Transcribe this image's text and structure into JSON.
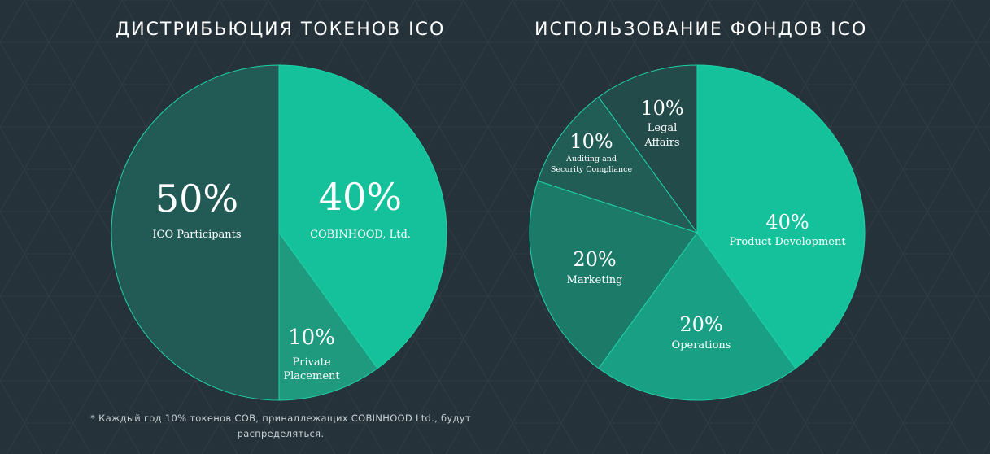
{
  "chart_data": [
    {
      "type": "pie",
      "title": "ДИСТРИБЬЮЦИЯ ТОКЕНОВ ICO",
      "slices": [
        {
          "label": [
            "COBINHOOD, Ltd."
          ],
          "value": 40,
          "pct_text": "40%",
          "color": "#14c19b"
        },
        {
          "label": [
            "Private",
            "Placement"
          ],
          "value": 10,
          "pct_text": "10%",
          "color": "#1f9a7f"
        },
        {
          "label": [
            "ICO Participants"
          ],
          "value": 50,
          "pct_text": "50%",
          "color": "#225a55"
        }
      ]
    },
    {
      "type": "pie",
      "title": "ИСПОЛЬЗОВАНИЕ ФОНДОВ ICO",
      "slices": [
        {
          "label": [
            "Product Development"
          ],
          "value": 40,
          "pct_text": "40%",
          "color": "#14c19b"
        },
        {
          "label": [
            "Operations"
          ],
          "value": 20,
          "pct_text": "20%",
          "color": "#19a084"
        },
        {
          "label": [
            "Marketing"
          ],
          "value": 20,
          "pct_text": "20%",
          "color": "#1c7a69"
        },
        {
          "label": [
            "Auditing and",
            "Security Compliance"
          ],
          "value": 10,
          "pct_text": "10%",
          "color": "#215c55"
        },
        {
          "label": [
            "Legal",
            "Affairs"
          ],
          "value": 10,
          "pct_text": "10%",
          "color": "#224b49"
        }
      ]
    }
  ],
  "footnote": {
    "line1": "*  Каждый год 10% токенов COB, принадлежащих COBINHOOD Ltd., будут",
    "line2": "распределяться."
  },
  "colors": {
    "background": "#26323a",
    "pattern": "#2f3c44",
    "slice_stroke": "#1ed1a8"
  }
}
